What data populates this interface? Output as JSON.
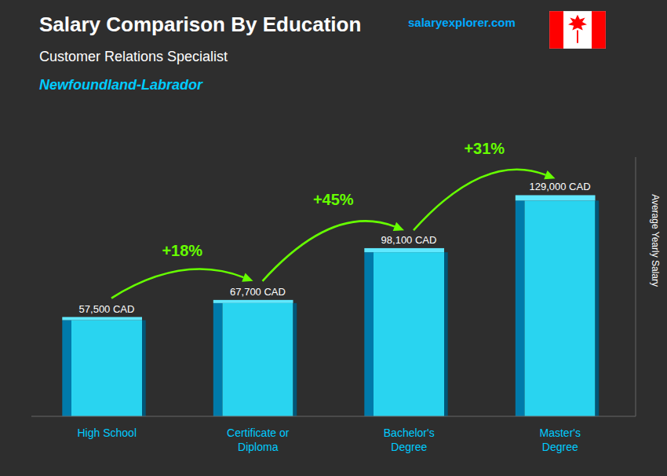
{
  "chart_data": {
    "type": "bar",
    "title": "Salary Comparison By Education",
    "subtitle": [
      "Customer Relations Specialist",
      "Newfoundland-Labrador"
    ],
    "categories": [
      "High School",
      "Certificate or\nDiploma",
      "Bachelor's\nDegree",
      "Master's\nDegree"
    ],
    "values": [
      57500,
      67700,
      98100,
      129000
    ],
    "value_labels": [
      "57,500 CAD",
      "67,700 CAD",
      "98,100 CAD",
      "129,000 CAD"
    ],
    "data_labels": true,
    "color": "#29d4f0",
    "annotations": [
      "+18%",
      "+45%",
      "+31%"
    ],
    "source": "salaryexplorer.com",
    "y_label": "Average Yearly Salary",
    "ylim": [
      0,
      155000
    ],
    "yticks": [],
    "tick_labels": "x",
    "grid": false
  }
}
